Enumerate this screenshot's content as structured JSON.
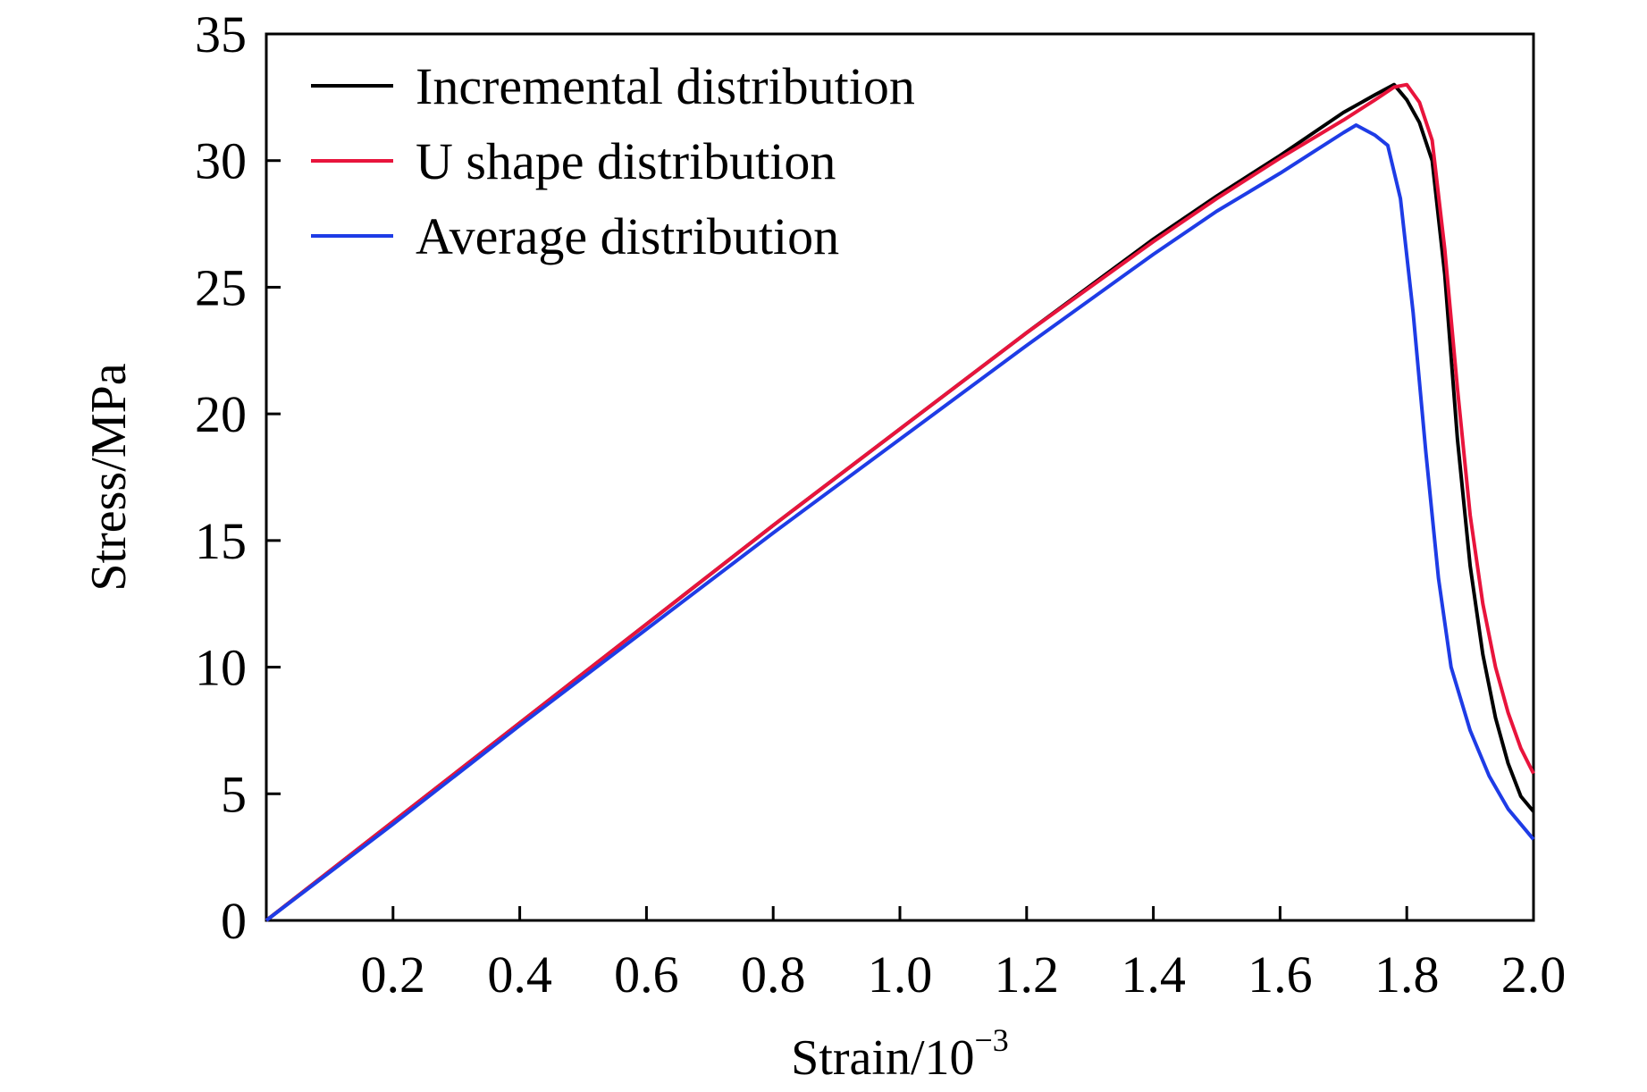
{
  "chart_data": {
    "type": "line",
    "title": "",
    "xlabel": "Strain/10",
    "xlabel_superscript": "−3",
    "ylabel": "Stress/MPa",
    "xlim": [
      0,
      2.0
    ],
    "ylim": [
      0,
      35
    ],
    "x_ticks": [
      0.2,
      0.4,
      0.6,
      0.8,
      1.0,
      1.2,
      1.4,
      1.6,
      1.8,
      2.0
    ],
    "x_tick_labels": [
      "0.2",
      "0.4",
      "0.6",
      "0.8",
      "1.0",
      "1.2",
      "1.4",
      "1.6",
      "1.8",
      "2.0"
    ],
    "y_ticks": [
      0,
      5,
      10,
      15,
      20,
      25,
      30,
      35
    ],
    "y_tick_labels": [
      "0",
      "5",
      "10",
      "15",
      "20",
      "25",
      "30",
      "35"
    ],
    "grid": false,
    "legend_position": "top-left",
    "series": [
      {
        "name": "Incremental distribution",
        "color": "#000000",
        "points": [
          [
            0,
            0
          ],
          [
            0.2,
            3.9
          ],
          [
            0.4,
            7.8
          ],
          [
            0.6,
            11.7
          ],
          [
            0.8,
            15.6
          ],
          [
            1.0,
            19.4
          ],
          [
            1.2,
            23.2
          ],
          [
            1.4,
            26.9
          ],
          [
            1.5,
            28.6
          ],
          [
            1.6,
            30.2
          ],
          [
            1.7,
            31.9
          ],
          [
            1.75,
            32.6
          ],
          [
            1.78,
            33.0
          ],
          [
            1.8,
            32.4
          ],
          [
            1.82,
            31.5
          ],
          [
            1.84,
            30.0
          ],
          [
            1.86,
            25.5
          ],
          [
            1.88,
            19.0
          ],
          [
            1.9,
            14.0
          ],
          [
            1.92,
            10.5
          ],
          [
            1.94,
            8.0
          ],
          [
            1.96,
            6.2
          ],
          [
            1.98,
            4.9
          ],
          [
            2.0,
            4.3
          ]
        ]
      },
      {
        "name": "U shape distribution",
        "color": "#e8143c",
        "points": [
          [
            0,
            0
          ],
          [
            0.2,
            3.9
          ],
          [
            0.4,
            7.8
          ],
          [
            0.6,
            11.7
          ],
          [
            0.8,
            15.6
          ],
          [
            1.0,
            19.4
          ],
          [
            1.2,
            23.2
          ],
          [
            1.4,
            26.8
          ],
          [
            1.5,
            28.5
          ],
          [
            1.6,
            30.1
          ],
          [
            1.7,
            31.6
          ],
          [
            1.75,
            32.4
          ],
          [
            1.78,
            32.9
          ],
          [
            1.8,
            33.0
          ],
          [
            1.82,
            32.3
          ],
          [
            1.84,
            30.8
          ],
          [
            1.86,
            26.5
          ],
          [
            1.88,
            21.0
          ],
          [
            1.9,
            16.0
          ],
          [
            1.92,
            12.5
          ],
          [
            1.94,
            10.0
          ],
          [
            1.96,
            8.2
          ],
          [
            1.98,
            6.8
          ],
          [
            2.0,
            5.8
          ]
        ]
      },
      {
        "name": "Average distribution",
        "color": "#1e3ce6",
        "points": [
          [
            0,
            0
          ],
          [
            0.2,
            3.8
          ],
          [
            0.4,
            7.7
          ],
          [
            0.6,
            11.5
          ],
          [
            0.8,
            15.3
          ],
          [
            1.0,
            19.0
          ],
          [
            1.2,
            22.7
          ],
          [
            1.4,
            26.3
          ],
          [
            1.5,
            28.0
          ],
          [
            1.6,
            29.5
          ],
          [
            1.65,
            30.3
          ],
          [
            1.7,
            31.1
          ],
          [
            1.72,
            31.4
          ],
          [
            1.75,
            31.0
          ],
          [
            1.77,
            30.6
          ],
          [
            1.79,
            28.5
          ],
          [
            1.81,
            24.0
          ],
          [
            1.83,
            18.5
          ],
          [
            1.85,
            13.5
          ],
          [
            1.87,
            10.0
          ],
          [
            1.9,
            7.5
          ],
          [
            1.93,
            5.7
          ],
          [
            1.96,
            4.4
          ],
          [
            2.0,
            3.2
          ]
        ]
      }
    ]
  }
}
